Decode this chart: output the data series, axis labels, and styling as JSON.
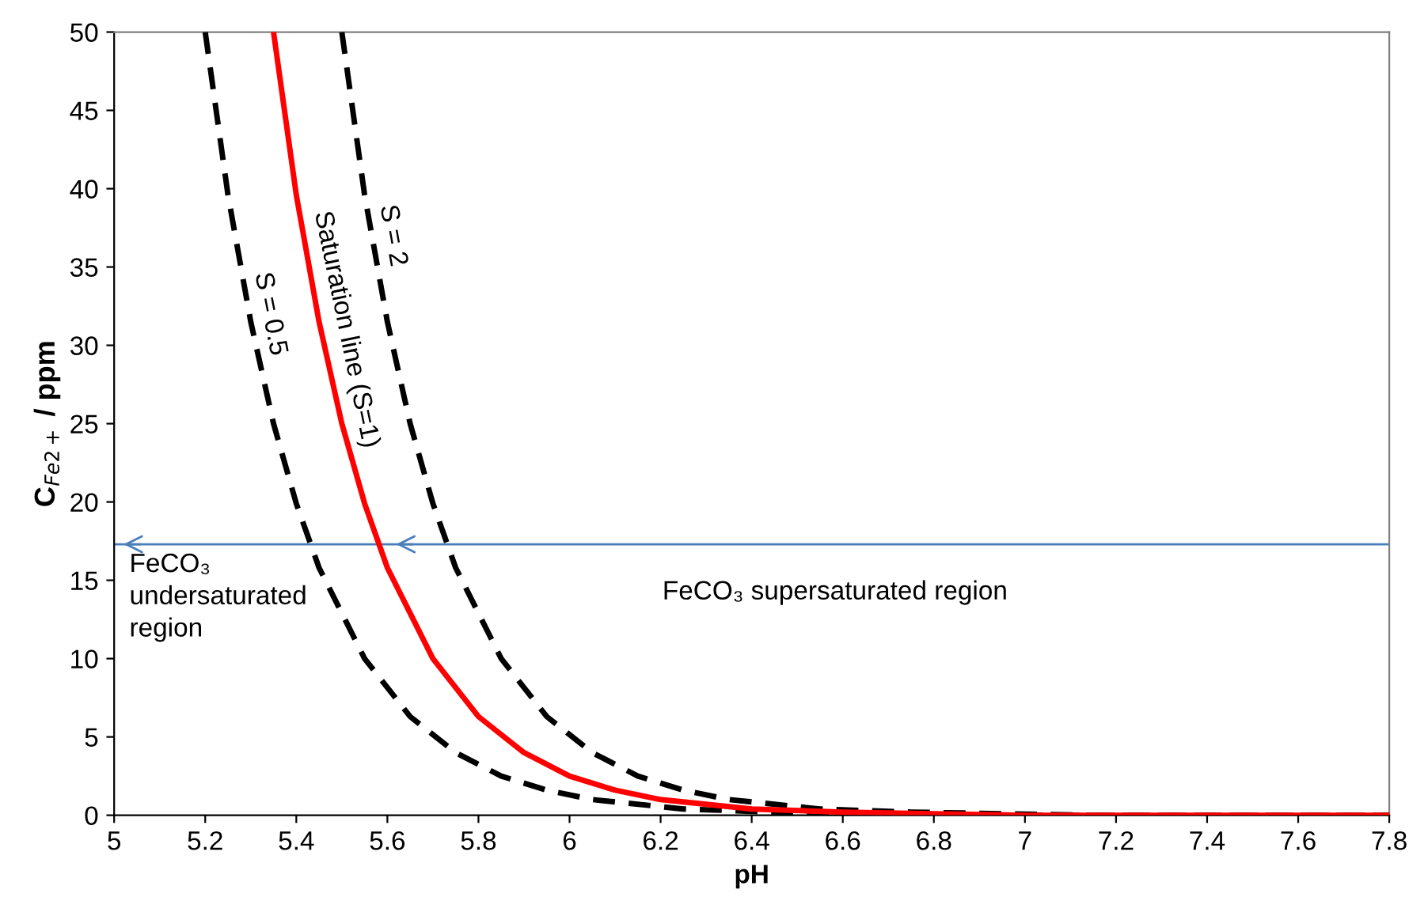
{
  "chart_data": {
    "type": "line",
    "xlabel": "pH",
    "ylabel": "C$_{Fe2+}$ / ppm",
    "xlim": [
      5,
      7.8
    ],
    "xticks": [
      5,
      5.2,
      5.4,
      5.6,
      5.8,
      6,
      6.2,
      6.4,
      6.6,
      6.8,
      7,
      7.2,
      7.4,
      7.6,
      7.8
    ],
    "ylim": [
      0,
      50
    ],
    "yticks": [
      0,
      5,
      10,
      15,
      20,
      25,
      30,
      35,
      40,
      45,
      50
    ],
    "grid": false,
    "legend": false,
    "series": [
      {
        "name": "S = 0.5",
        "color": "#000000",
        "line_style": "dashed",
        "x": [
          5.2,
          5.25,
          5.3,
          5.35,
          5.4,
          5.45,
          5.55,
          5.65,
          5.75,
          5.85,
          5.95,
          6.05,
          6.25,
          6.45,
          6.65,
          6.85,
          7.0,
          7.8
        ],
        "values": [
          50,
          39.6,
          31.5,
          25.0,
          19.9,
          15.8,
          10.0,
          6.3,
          4.0,
          2.5,
          1.6,
          1.0,
          0.4,
          0.2,
          0.1,
          0,
          0,
          0
        ]
      },
      {
        "name": "Saturation line (S=1)",
        "color": "#ff0000",
        "line_style": "solid",
        "x": [
          5.35,
          5.4,
          5.45,
          5.5,
          5.55,
          5.6,
          5.7,
          5.8,
          5.9,
          6.0,
          6.1,
          6.2,
          6.4,
          6.6,
          6.8,
          7.0,
          7.2,
          7.8
        ],
        "values": [
          50,
          39.6,
          31.5,
          25.0,
          19.9,
          15.8,
          10.0,
          6.3,
          4.0,
          2.5,
          1.6,
          1.0,
          0.4,
          0.2,
          0.1,
          0,
          0,
          0
        ]
      },
      {
        "name": "S = 2",
        "color": "#000000",
        "line_style": "dashed",
        "x": [
          5.5,
          5.55,
          5.6,
          5.65,
          5.7,
          5.75,
          5.85,
          5.95,
          6.05,
          6.15,
          6.25,
          6.35,
          6.55,
          6.75,
          6.95,
          7.15,
          7.4,
          7.8
        ],
        "values": [
          50,
          39.6,
          31.5,
          25.0,
          19.9,
          15.8,
          10.0,
          6.3,
          4.0,
          2.5,
          1.6,
          1.0,
          0.4,
          0.2,
          0.1,
          0,
          0,
          0
        ]
      }
    ],
    "ref_lines": [
      {
        "axis": "y",
        "value": 17.3,
        "color": "#4a7ebb",
        "line_style": "solid"
      }
    ],
    "annotations": [
      "FeCO₃\nundersaturated\nregion",
      "FeCO₃ supersaturated region"
    ]
  }
}
